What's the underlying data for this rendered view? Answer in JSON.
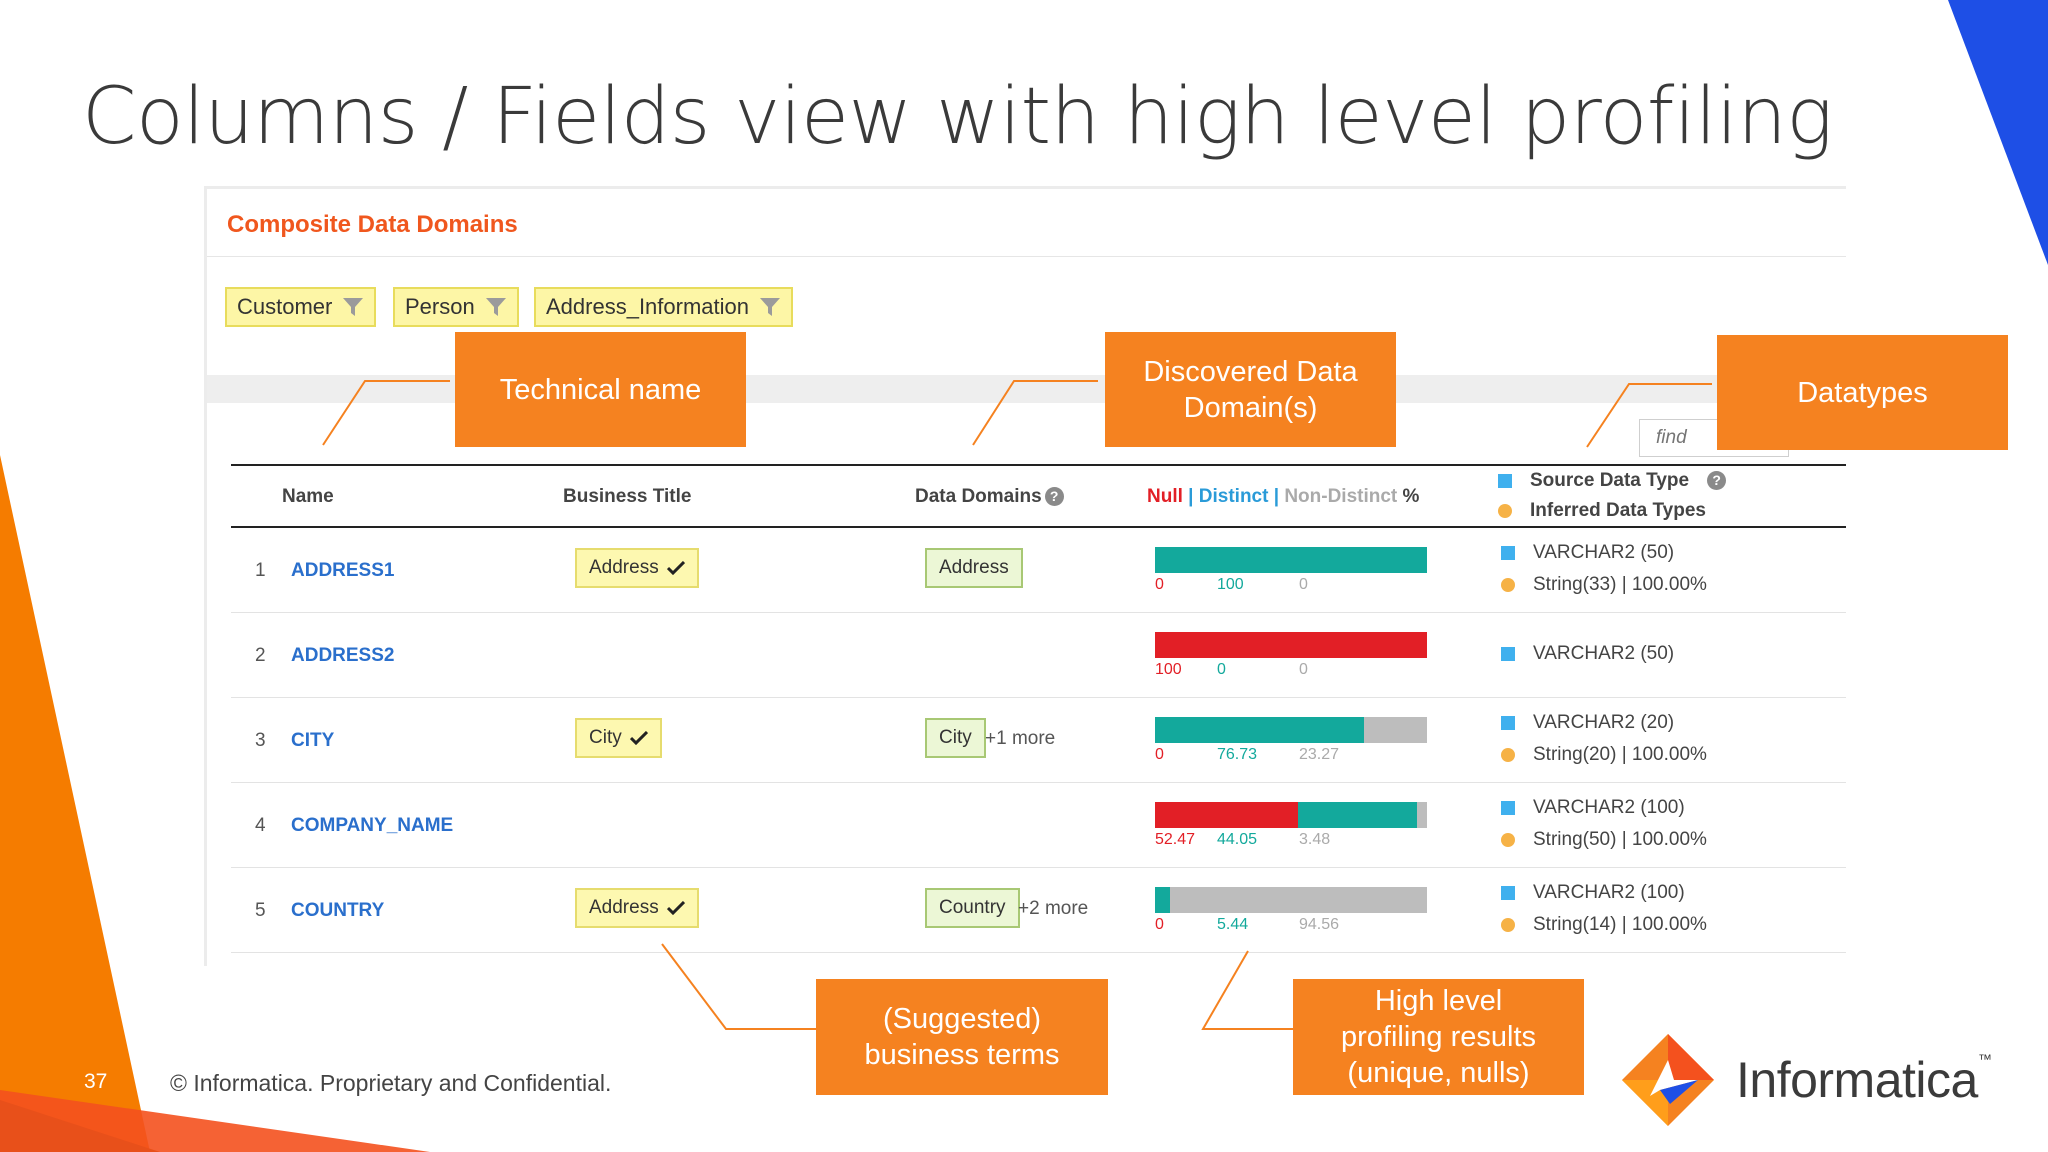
{
  "slide": {
    "title": "Columns / Fields view with high level profiling",
    "page_number": "37",
    "footer": "© Informatica. Proprietary and Confidential."
  },
  "panel": {
    "title": "Composite Data Domains",
    "filters": [
      {
        "label": "Customer",
        "icon": "funnel-icon"
      },
      {
        "label": "Person",
        "icon": "funnel-icon"
      },
      {
        "label": "Address_Information",
        "icon": "funnel-icon"
      }
    ],
    "find_placeholder": "find"
  },
  "table": {
    "headers": {
      "name": "Name",
      "business_title": "Business Title",
      "data_domains": "Data Domains",
      "profile_null": "Null",
      "profile_sep1": " | ",
      "profile_distinct": "Distinct",
      "profile_sep2": " | ",
      "profile_non_distinct": "Non-Distinct",
      "profile_pct": " %",
      "source_data_type": "Source Data Type",
      "inferred_data_types": "Inferred Data Types"
    },
    "rows": [
      {
        "num": "1",
        "name": "ADDRESS1",
        "business_title": "Address",
        "data_domain": "Address",
        "more": "",
        "null": 0,
        "distinct": 100,
        "non_distinct": 0,
        "null_label": "0",
        "distinct_label": "100",
        "non_distinct_label": "0",
        "source_type": "VARCHAR2 (50)",
        "inferred_type": "String(33) | 100.00%"
      },
      {
        "num": "2",
        "name": "ADDRESS2",
        "business_title": "",
        "data_domain": "",
        "more": "",
        "null": 100,
        "distinct": 0,
        "non_distinct": 0,
        "null_label": "100",
        "distinct_label": "0",
        "non_distinct_label": "0",
        "source_type": "VARCHAR2 (50)",
        "inferred_type": ""
      },
      {
        "num": "3",
        "name": "CITY",
        "business_title": "City",
        "data_domain": "City",
        "more": "+1 more",
        "null": 0,
        "distinct": 76.73,
        "non_distinct": 23.27,
        "null_label": "0",
        "distinct_label": "76.73",
        "non_distinct_label": "23.27",
        "source_type": "VARCHAR2 (20)",
        "inferred_type": "String(20) | 100.00%"
      },
      {
        "num": "4",
        "name": "COMPANY_NAME",
        "business_title": "",
        "data_domain": "",
        "more": "",
        "null": 52.47,
        "distinct": 44.05,
        "non_distinct": 3.48,
        "null_label": "52.47",
        "distinct_label": "44.05",
        "non_distinct_label": "3.48",
        "source_type": "VARCHAR2 (100)",
        "inferred_type": "String(50) | 100.00%"
      },
      {
        "num": "5",
        "name": "COUNTRY",
        "business_title": "Address",
        "data_domain": "Country",
        "more": "+2 more",
        "null": 0,
        "distinct": 5.44,
        "non_distinct": 94.56,
        "null_label": "0",
        "distinct_label": "5.44",
        "non_distinct_label": "94.56",
        "source_type": "VARCHAR2 (100)",
        "inferred_type": "String(14) | 100.00%"
      }
    ]
  },
  "callouts": {
    "technical_name": "Technical name",
    "discovered_domains": "Discovered Data Domain(s)",
    "datatypes": "Datatypes",
    "business_terms": "(Suggested) business terms",
    "profiling_results": "High level profiling results (unique, nulls)"
  },
  "brand": {
    "name": "Informatica"
  },
  "colors": {
    "accent_orange": "#f58220",
    "title_red": "#f0571e",
    "null_red": "#e21f26",
    "distinct_teal": "#13a99c",
    "non_distinct_gray": "#bdbdbd",
    "link_blue": "#2a6fcc"
  }
}
